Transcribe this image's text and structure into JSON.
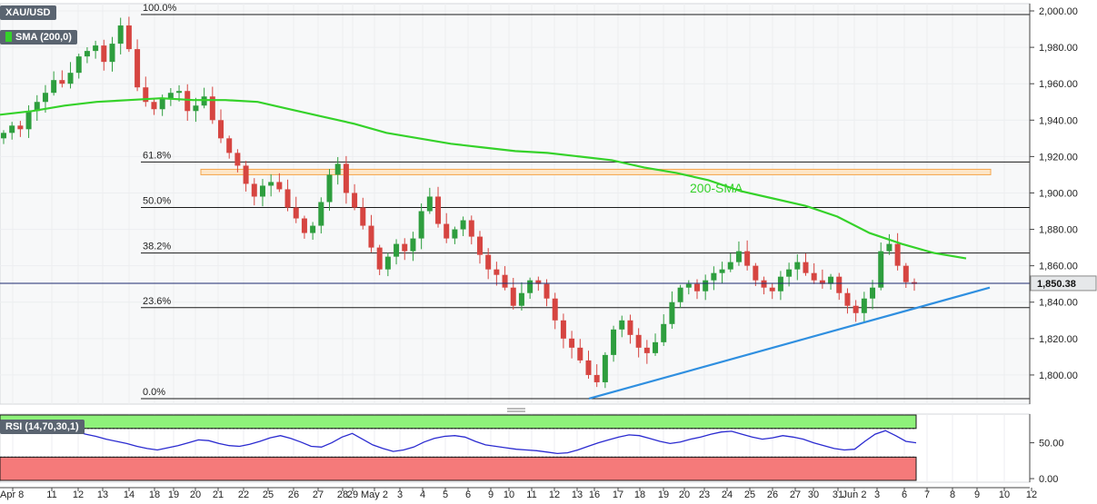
{
  "panel": {
    "symbol": "XAU/USD",
    "sma_label": "SMA (200,0)",
    "sma_color": "#35d22a",
    "rsi_label": "RSI (14,70,30,1)",
    "price_tag": "1,850.38"
  },
  "chart_data": {
    "type": "candlestick",
    "ylim": [
      1784,
      2004
    ],
    "rsi_ylim": [
      -5,
      90
    ],
    "y_ticks": [
      "2,000.00",
      "1,980.00",
      "1,960.00",
      "1,940.00",
      "1,920.00",
      "1,900.00",
      "1,880.00",
      "1,860.00",
      "1,840.00",
      "1,820.00",
      "1,800.00"
    ],
    "y_tick_values": [
      2000,
      1980,
      1960,
      1940,
      1920,
      1900,
      1880,
      1860,
      1840,
      1820,
      1800
    ],
    "rsi_ticks": [
      "50.00",
      "0.00"
    ],
    "rsi_tick_values": [
      50,
      0
    ],
    "x_ticks": [
      "Apr 8",
      "11",
      "12",
      "13",
      "14",
      "18",
      "19",
      "20",
      "21",
      "22",
      "25",
      "26",
      "27",
      "28",
      "29",
      "May 2",
      "3",
      "4",
      "5",
      "6",
      "9",
      "10",
      "11",
      "12",
      "13",
      "16",
      "17",
      "18",
      "19",
      "20",
      "23",
      "24",
      "25",
      "26",
      "27",
      "30",
      "31",
      "Jun 2",
      "3",
      "6",
      "7",
      "8",
      "9",
      "10",
      "12"
    ],
    "fibonacci": [
      {
        "label": "100.0%",
        "price": 1998
      },
      {
        "label": "61.8%",
        "price": 1917
      },
      {
        "label": "50.0%",
        "price": 1892
      },
      {
        "label": "38.2%",
        "price": 1867
      },
      {
        "label": "23.6%",
        "price": 1837
      },
      {
        "label": "0.0%",
        "price": 1787
      }
    ],
    "annotations": {
      "sma_label": "200-SMA"
    },
    "current_price": 1850.38,
    "resistance_zone": [
      1910,
      1913
    ],
    "trendline": {
      "from": {
        "date": "May 16",
        "price": 1787
      },
      "to": {
        "date": "Jun 8",
        "price": 1848
      }
    },
    "closes": [
      1933,
      1937,
      1935,
      1945,
      1950,
      1955,
      1962,
      1960,
      1966,
      1975,
      1978,
      1981,
      1972,
      1982,
      1992,
      1979,
      1958,
      1950,
      1946,
      1952,
      1955,
      1956,
      1945,
      1948,
      1953,
      1940,
      1930,
      1922,
      1915,
      1905,
      1898,
      1904,
      1906,
      1902,
      1892,
      1886,
      1878,
      1882,
      1895,
      1910,
      1916,
      1900,
      1892,
      1882,
      1870,
      1858,
      1865,
      1872,
      1868,
      1875,
      1890,
      1898,
      1883,
      1875,
      1880,
      1885,
      1876,
      1866,
      1858,
      1855,
      1848,
      1838,
      1845,
      1852,
      1850,
      1842,
      1830,
      1820,
      1815,
      1808,
      1800,
      1796,
      1811,
      1825,
      1830,
      1822,
      1815,
      1812,
      1818,
      1828,
      1840,
      1848,
      1850,
      1846,
      1852,
      1856,
      1858,
      1862,
      1868,
      1860,
      1852,
      1848,
      1846,
      1854,
      1858,
      1862,
      1856,
      1852,
      1850,
      1854,
      1845,
      1838,
      1834,
      1842,
      1848,
      1868,
      1872,
      1860,
      1851,
      1850
    ],
    "sma": [
      1943,
      1945,
      1948,
      1950,
      1951,
      1952,
      1951,
      1951,
      1950,
      1946,
      1942,
      1938,
      1933,
      1930,
      1927,
      1925,
      1923,
      1922,
      1920,
      1918,
      1914,
      1911,
      1907,
      1901,
      1897,
      1893,
      1887,
      1878,
      1872,
      1867,
      1864
    ],
    "rsi": [
      63,
      65,
      64,
      67,
      69,
      71,
      70,
      66,
      62,
      59,
      55,
      52,
      49,
      45,
      42,
      40,
      43,
      46,
      50,
      54,
      53,
      49,
      46,
      45,
      48,
      52,
      57,
      60,
      56,
      51,
      45,
      44,
      50,
      58,
      63,
      55,
      47,
      42,
      38,
      40,
      44,
      51,
      56,
      59,
      60,
      58,
      52,
      47,
      45,
      43,
      41,
      40,
      39,
      37,
      35,
      36,
      40,
      45,
      50,
      54,
      58,
      61,
      60,
      56,
      52,
      49,
      51,
      55,
      58,
      62,
      65,
      66,
      62,
      58,
      55,
      57,
      60,
      58,
      55,
      50,
      46,
      42,
      40,
      41,
      52,
      62,
      67,
      60,
      52,
      50
    ]
  }
}
